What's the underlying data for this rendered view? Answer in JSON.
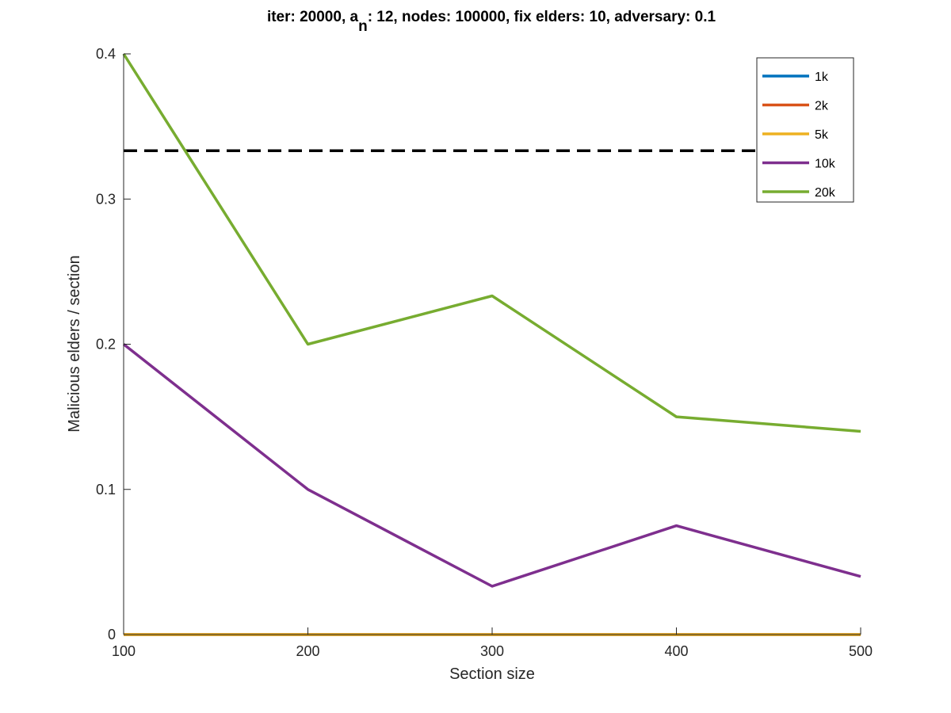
{
  "chart_data": {
    "type": "line",
    "title": {
      "prefix": "iter: 20000, a",
      "subscript": "n",
      "suffix": ": 12, nodes: 100000, fix elders: 10, adversary: 0.1"
    },
    "xlabel": "Section size",
    "ylabel": "Malicious elders / section",
    "x": [
      100,
      200,
      300,
      400,
      500
    ],
    "xlim": [
      100,
      500
    ],
    "ylim": [
      0,
      0.4
    ],
    "xticks": [
      100,
      200,
      300,
      400,
      500
    ],
    "yticks": [
      0,
      0.1,
      0.2,
      0.3,
      0.4
    ],
    "xtick_labels": [
      "100",
      "200",
      "300",
      "400",
      "500"
    ],
    "ytick_labels": [
      "0",
      "0.1",
      "0.2",
      "0.3",
      "0.4"
    ],
    "grid": false,
    "legend_position": "top-right",
    "series": [
      {
        "name": "1k",
        "color": "#0072BD",
        "values": [
          0,
          0,
          0,
          0,
          0
        ]
      },
      {
        "name": "2k",
        "color": "#D95319",
        "values": [
          0,
          0,
          0,
          0,
          0
        ]
      },
      {
        "name": "5k",
        "color": "#EDB120",
        "values": [
          0,
          0,
          0,
          0,
          0
        ]
      },
      {
        "name": "10k",
        "color": "#7E2F8E",
        "values": [
          0.2,
          0.1,
          0.0333,
          0.075,
          0.04
        ]
      },
      {
        "name": "20k",
        "color": "#77AC30",
        "values": [
          0.4,
          0.2,
          0.2333,
          0.15,
          0.14
        ]
      }
    ],
    "reference_line": {
      "y": 0.3333,
      "x_range": [
        100,
        450
      ],
      "style": "dashed",
      "color": "#000000"
    }
  }
}
